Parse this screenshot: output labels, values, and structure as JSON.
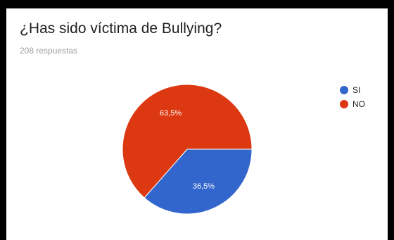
{
  "card": {
    "title": "¿Has sido víctima de Bullying?",
    "responses": "208 respuestas"
  },
  "chart_data": {
    "type": "pie",
    "categories": [
      "SI",
      "NO"
    ],
    "values": [
      36.5,
      63.5
    ],
    "labels": [
      "36,5%",
      "63,5%"
    ],
    "colors": [
      "#3366cc",
      "#dc3912"
    ],
    "legend_position": "right",
    "title": ""
  }
}
